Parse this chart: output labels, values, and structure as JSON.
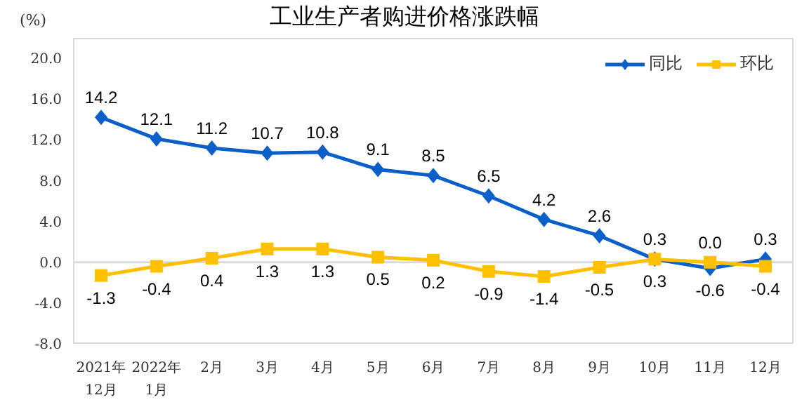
{
  "chart_data": {
    "type": "line",
    "title": "工业生产者购进价格涨跌幅",
    "ylabel": "(%)",
    "categories": [
      "2021年\n12月",
      "2022年\n1月",
      "2月",
      "3月",
      "4月",
      "5月",
      "6月",
      "7月",
      "8月",
      "9月",
      "10月",
      "11月",
      "12月"
    ],
    "series": [
      {
        "name": "同比",
        "color": "#0a5fc8",
        "marker": "diamond",
        "values": [
          14.2,
          12.1,
          11.2,
          10.7,
          10.8,
          9.1,
          8.5,
          6.5,
          4.2,
          2.6,
          0.3,
          -0.6,
          0.3
        ],
        "value_labels": [
          "14.2",
          "12.1",
          "11.2",
          "10.7",
          "10.8",
          "9.1",
          "8.5",
          "6.5",
          "4.2",
          "2.6",
          "0.3",
          "-0.6",
          "0.3"
        ]
      },
      {
        "name": "环比",
        "color": "#ffc000",
        "marker": "square",
        "values": [
          -1.3,
          -0.4,
          0.4,
          1.3,
          1.3,
          0.5,
          0.2,
          -0.9,
          -1.4,
          -0.5,
          0.3,
          0.0,
          -0.4
        ],
        "value_labels": [
          "-1.3",
          "-0.4",
          "0.4",
          "1.3",
          "1.3",
          "0.5",
          "0.2",
          "-0.9",
          "-1.4",
          "-0.5",
          "0.3",
          "0.0",
          "-0.4"
        ]
      }
    ],
    "ylim": [
      -8,
      22
    ],
    "yticks": [
      {
        "value": -8,
        "label": "-8.0"
      },
      {
        "value": -4,
        "label": "-4.0"
      },
      {
        "value": 0,
        "label": "0.0"
      },
      {
        "value": 4,
        "label": "4.0"
      },
      {
        "value": 8,
        "label": "8.0"
      },
      {
        "value": 12,
        "label": "12.0"
      },
      {
        "value": 16,
        "label": "16.0"
      },
      {
        "value": 20,
        "label": "20.0"
      }
    ],
    "ref_lines": [
      {
        "axis": "y",
        "value": 0,
        "color": "#d9d9d9"
      }
    ],
    "grid": false,
    "legend": "top right",
    "line_style": "solid"
  }
}
